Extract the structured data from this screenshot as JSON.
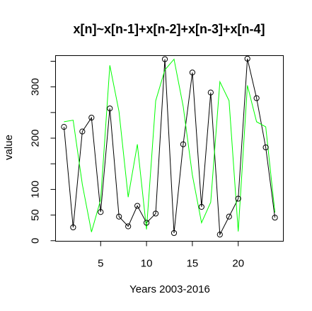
{
  "chart_data": {
    "type": "line",
    "title": "x[n]~x[n-1]+x[n-2]+x[n-3]+x[n-4]",
    "xlabel": "Years 2003-2016",
    "ylabel": "value",
    "x": [
      1,
      2,
      3,
      4,
      5,
      6,
      7,
      8,
      9,
      10,
      11,
      12,
      13,
      14,
      15,
      16,
      17,
      18,
      19,
      20,
      21,
      22,
      23,
      24
    ],
    "xlim": [
      0.08,
      24.92
    ],
    "ylim": [
      -1,
      361
    ],
    "x_ticks": [
      5,
      10,
      15,
      20
    ],
    "y_ticks": [
      0,
      50,
      100,
      150,
      200,
      250,
      300,
      350
    ],
    "y_tick_labels": [
      "0",
      "50",
      "100",
      "",
      "200",
      "",
      "300",
      ""
    ],
    "grid": false,
    "legend": "none",
    "series": [
      {
        "style": "points-and-line",
        "color": "#000000",
        "values": [
          222,
          26,
          213,
          240,
          56,
          258,
          47,
          28,
          68,
          35,
          53,
          354,
          15,
          188,
          328,
          66,
          289,
          12,
          47,
          82,
          355,
          278,
          182,
          45
        ]
      },
      {
        "style": "line",
        "color": "#00ff00",
        "values": [
          232,
          235,
          110,
          17,
          80,
          342,
          252,
          85,
          188,
          22,
          273,
          333,
          354,
          262,
          128,
          35,
          75,
          310,
          273,
          18,
          303,
          232,
          222,
          55
        ]
      }
    ]
  }
}
